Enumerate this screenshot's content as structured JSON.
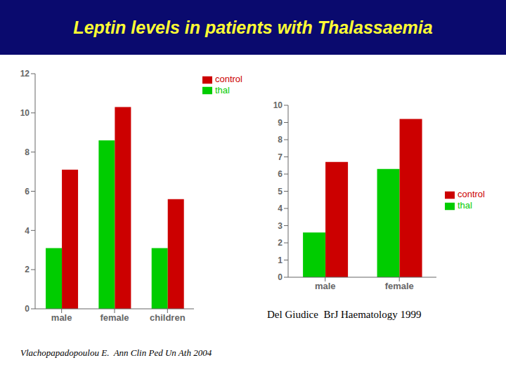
{
  "chart_data": [
    {
      "type": "bar",
      "title": "Leptin  levels in  patients with Thalassaemia",
      "categories": [
        "male",
        "female",
        "children"
      ],
      "series": [
        {
          "name": "thal",
          "color": "#00CC00",
          "values": [
            3.1,
            8.6,
            3.1
          ]
        },
        {
          "name": "control",
          "color": "#CC0000",
          "values": [
            7.1,
            10.3,
            5.6
          ]
        }
      ],
      "ylim": [
        0,
        12
      ],
      "yticks": [
        0,
        2,
        4,
        6,
        8,
        10,
        12
      ],
      "legend": "upper right",
      "annotations": [
        "Vlachopapadopoulou E.  Ann Clin Ped Un Ath 2004"
      ]
    },
    {
      "type": "bar",
      "categories": [
        "male",
        "female"
      ],
      "series": [
        {
          "name": "thal",
          "color": "#00CC00",
          "values": [
            2.6,
            6.3
          ]
        },
        {
          "name": "control",
          "color": "#CC0000",
          "values": [
            6.7,
            9.2
          ]
        }
      ],
      "ylim": [
        0,
        10
      ],
      "yticks": [
        0,
        1,
        2,
        3,
        4,
        5,
        6,
        7,
        8,
        9,
        10
      ],
      "legend": "right",
      "annotations": [
        "Del Giudice  BrJ Haematology 1999"
      ]
    }
  ]
}
